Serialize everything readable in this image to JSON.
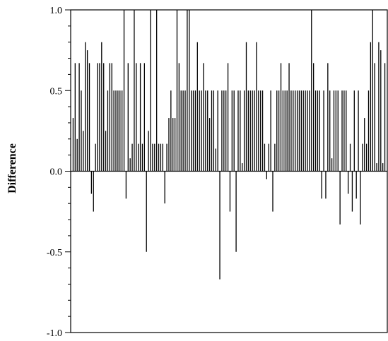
{
  "chart_data": {
    "type": "bar",
    "title": "",
    "xlabel": "",
    "ylabel": "Difference",
    "ylim": [
      -1.0,
      1.0
    ],
    "yticks": [
      -1.0,
      -0.5,
      0.0,
      0.5,
      1.0
    ],
    "ytick_labels": [
      "-1.0",
      "-0.5",
      "0.0",
      "0.5",
      "1.0"
    ],
    "xticks_shown": false,
    "grid": false,
    "legend": "none",
    "bar_color": "#000000",
    "values": [
      0.33,
      0.67,
      0.2,
      0.67,
      0.5,
      0.25,
      0.8,
      0.75,
      0.67,
      -0.14,
      -0.25,
      0.17,
      0.67,
      0.67,
      0.8,
      0.67,
      0.25,
      0.5,
      0.67,
      0.67,
      0.5,
      0.5,
      0.5,
      0.5,
      0.5,
      1.0,
      -0.17,
      0.67,
      0.08,
      0.17,
      1.0,
      0.67,
      0.17,
      0.67,
      0.17,
      0.67,
      -0.5,
      0.25,
      1.0,
      0.17,
      0.17,
      1.0,
      0.17,
      0.17,
      0.17,
      -0.2,
      0.17,
      0.33,
      0.5,
      0.33,
      0.33,
      1.0,
      0.67,
      0.5,
      0.5,
      0.5,
      1.0,
      1.0,
      0.5,
      0.5,
      0.5,
      0.8,
      0.5,
      0.5,
      0.67,
      0.5,
      0.5,
      0.33,
      0.5,
      0.5,
      0.14,
      0.5,
      -0.67,
      0.5,
      0.5,
      0.5,
      0.67,
      -0.25,
      0.5,
      0.5,
      -0.5,
      0.5,
      0.5,
      0.05,
      0.5,
      0.8,
      0.5,
      0.5,
      0.5,
      0.5,
      0.8,
      0.5,
      0.5,
      0.5,
      0.17,
      -0.05,
      0.17,
      0.5,
      -0.25,
      0.17,
      0.5,
      0.5,
      0.67,
      0.5,
      0.5,
      0.5,
      0.67,
      0.5,
      0.5,
      0.5,
      0.5,
      0.5,
      0.5,
      0.5,
      0.5,
      0.5,
      0.5,
      1.0,
      0.67,
      0.5,
      0.5,
      0.5,
      -0.17,
      0.5,
      -0.17,
      0.67,
      0.5,
      0.08,
      0.5,
      0.5,
      0.5,
      -0.33,
      0.5,
      0.5,
      0.5,
      -0.14,
      0.17,
      -0.25,
      0.5,
      -0.17,
      0.5,
      -0.33,
      0.17,
      0.33,
      0.17,
      0.5,
      0.8,
      1.0,
      0.67,
      0.05,
      0.8,
      0.75,
      0.05,
      0.67
    ]
  }
}
